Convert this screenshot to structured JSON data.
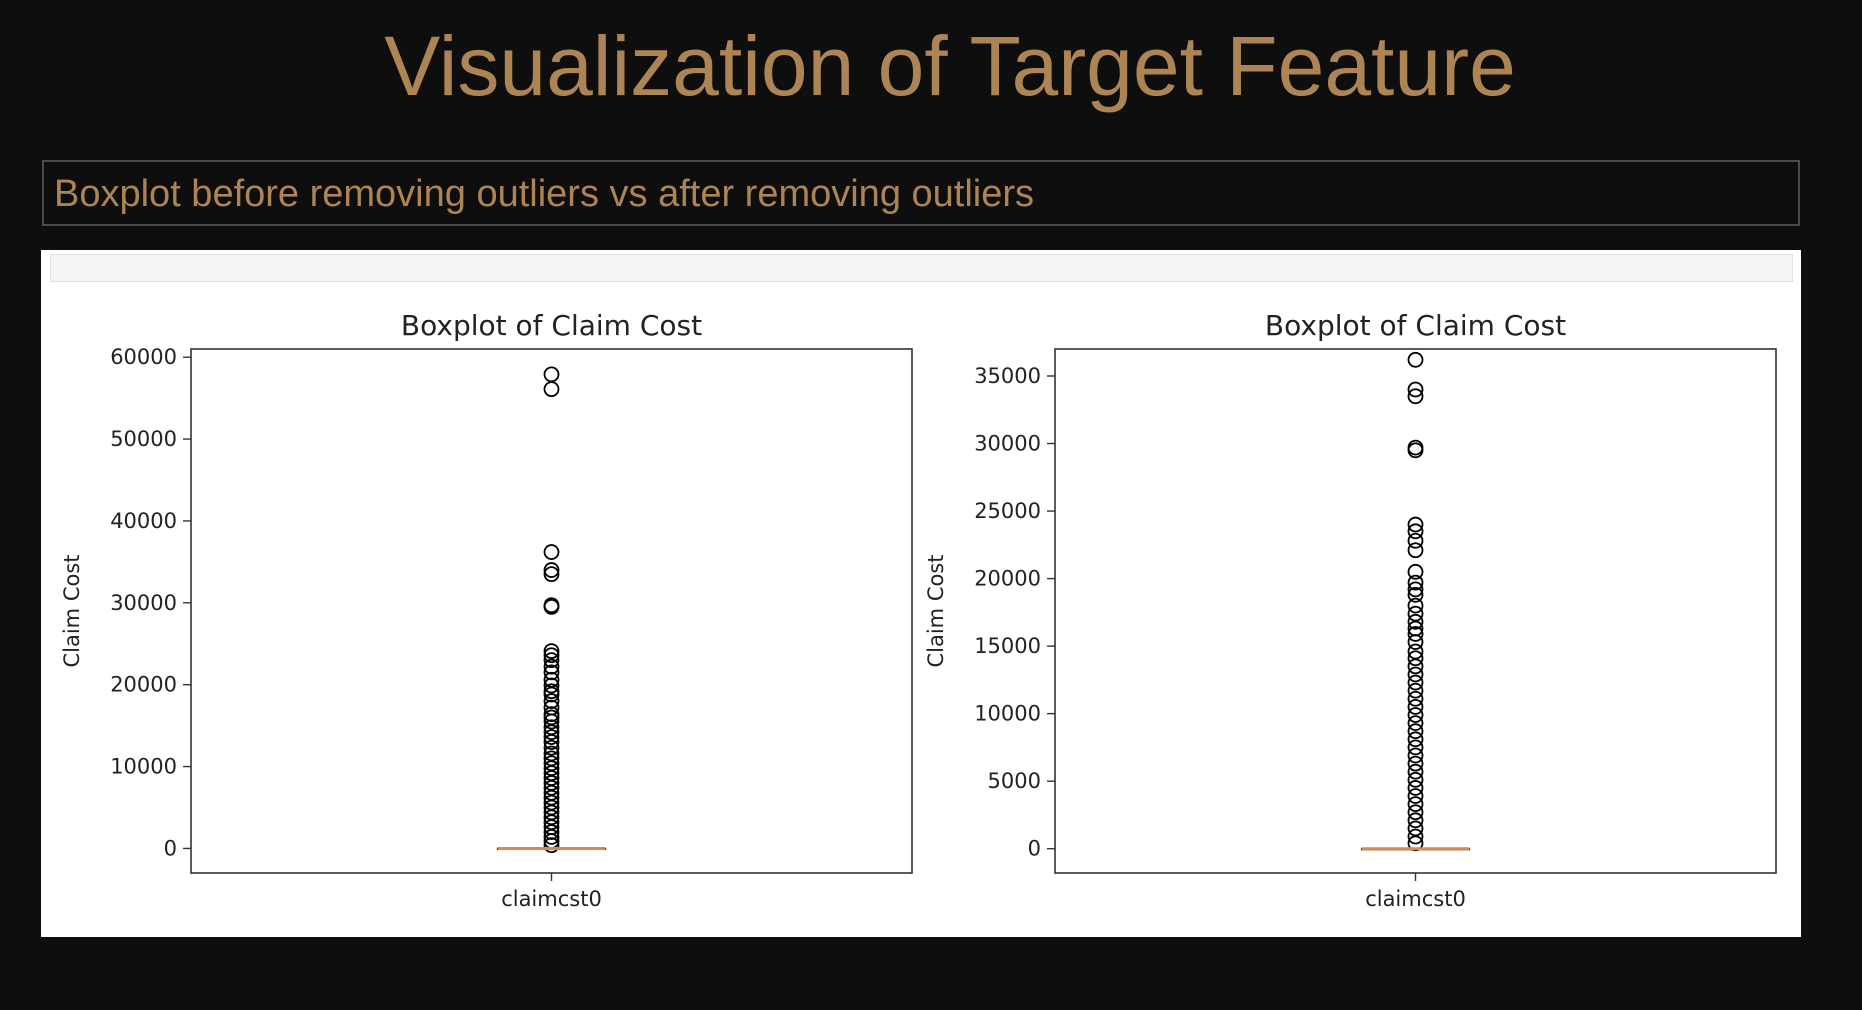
{
  "slide": {
    "title": "Visualization of Target Feature",
    "subtitle": "Boxplot before removing outliers vs after removing outliers"
  },
  "colors": {
    "background": "#0e0e0e",
    "accent_text": "#ad8454",
    "median_line": "#d9894f",
    "marker_edge": "#000000"
  },
  "chart_data": [
    {
      "type": "box",
      "title": "Boxplot of Claim Cost",
      "xlabel": "",
      "ylabel": "Claim Cost",
      "categories": [
        "claimcst0"
      ],
      "ylim": [
        -3000,
        61000
      ],
      "yticks": [
        0,
        10000,
        20000,
        30000,
        40000,
        50000,
        60000
      ],
      "ytick_labels": [
        "0",
        "10000",
        "20000",
        "30000",
        "40000",
        "50000",
        "60000"
      ],
      "box": {
        "min": 0,
        "q1": 0,
        "median": 0,
        "q3": 0,
        "max": 0
      },
      "outliers": [
        57900,
        56100,
        36200,
        34000,
        33500,
        29700,
        29500,
        24100,
        23600,
        23000,
        22200,
        21500,
        20600,
        19900,
        19200,
        18800,
        18000,
        17200,
        16400,
        16000,
        15500,
        14800,
        14200,
        13600,
        13000,
        12300,
        11600,
        11000,
        10400,
        9800,
        9200,
        8600,
        8000,
        7400,
        6800,
        6200,
        5600,
        5000,
        4400,
        3800,
        3200,
        2600,
        2000,
        1400,
        900,
        400
      ],
      "grid": false
    },
    {
      "type": "box",
      "title": "Boxplot of Claim Cost",
      "xlabel": "",
      "ylabel": "Claim Cost",
      "categories": [
        "claimcst0"
      ],
      "ylim": [
        -1800,
        37000
      ],
      "yticks": [
        0,
        5000,
        10000,
        15000,
        20000,
        25000,
        30000,
        35000
      ],
      "ytick_labels": [
        "0",
        "5000",
        "10000",
        "15000",
        "20000",
        "25000",
        "30000",
        "35000"
      ],
      "box": {
        "min": 0,
        "q1": 0,
        "median": 0,
        "q3": 0,
        "max": 0
      },
      "outliers": [
        36200,
        34000,
        33500,
        29700,
        29500,
        24000,
        23500,
        22800,
        22100,
        20500,
        19700,
        19200,
        18800,
        18000,
        17400,
        16800,
        16300,
        15900,
        15300,
        14600,
        14100,
        13500,
        12900,
        12300,
        11700,
        11100,
        10500,
        9900,
        9300,
        8700,
        8100,
        7500,
        6900,
        6300,
        5700,
        5100,
        4500,
        3900,
        3300,
        2700,
        2100,
        1500,
        900,
        400
      ],
      "grid": false
    }
  ]
}
